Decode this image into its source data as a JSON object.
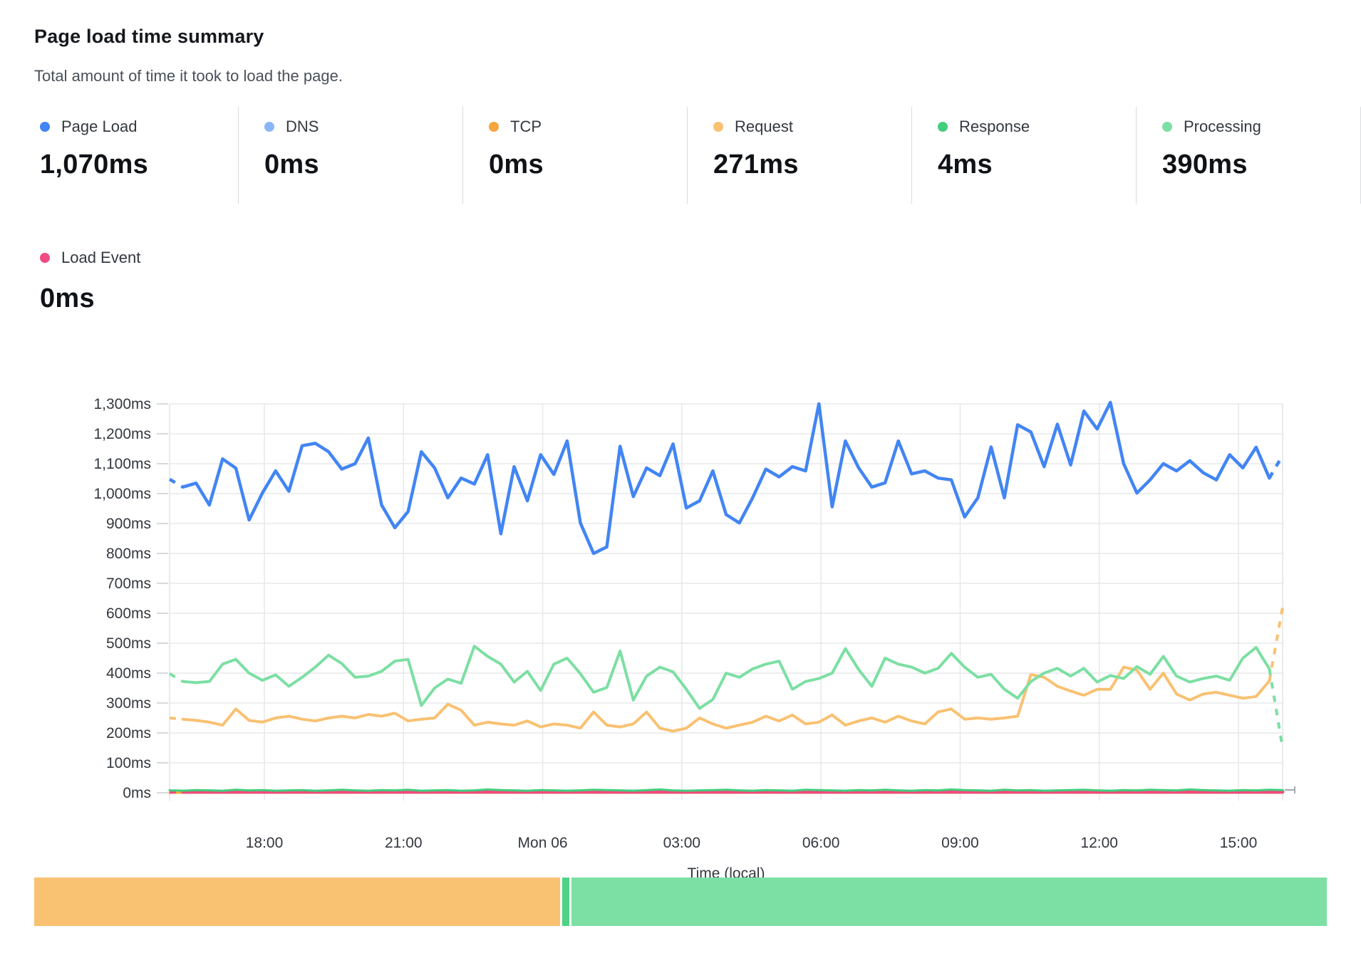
{
  "header": {
    "title": "Page load time summary",
    "subtitle": "Total amount of time it took to load the page."
  },
  "metrics": [
    {
      "label": "Page Load",
      "value": "1,070ms",
      "color": "#4285f4"
    },
    {
      "label": "DNS",
      "value": "0ms",
      "color": "#8ab6f8"
    },
    {
      "label": "TCP",
      "value": "0ms",
      "color": "#f5a53d"
    },
    {
      "label": "Request",
      "value": "271ms",
      "color": "#f9c172"
    },
    {
      "label": "Response",
      "value": "4ms",
      "color": "#42ce7c"
    },
    {
      "label": "Processing",
      "value": "390ms",
      "color": "#7cdfa3"
    },
    {
      "label": "Load Event",
      "value": "0ms",
      "color": "#ef4a81"
    }
  ],
  "chart_data": {
    "type": "line",
    "title": "Page load time summary",
    "xlabel": "Time (local)",
    "ylabel": "",
    "ylim": [
      0,
      1300
    ],
    "y_step": 100,
    "grid": true,
    "x_tick_labels": [
      "18:00",
      "21:00",
      "Mon 06",
      "03:00",
      "06:00",
      "09:00",
      "12:00",
      "15:00"
    ],
    "y_tick_labels": [
      "0ms",
      "100ms",
      "200ms",
      "300ms",
      "400ms",
      "500ms",
      "600ms",
      "700ms",
      "800ms",
      "900ms",
      "1,000ms",
      "1,100ms",
      "1,200ms",
      "1,300ms"
    ],
    "series": [
      {
        "name": "DNS",
        "color": "#8ab6f8",
        "width": 3,
        "flat": 0,
        "count": 85
      },
      {
        "name": "TCP",
        "color": "#f5a53d",
        "width": 3,
        "flat": 0,
        "count": 85
      },
      {
        "name": "Request",
        "color": "#f9c172",
        "width": 4,
        "dash_head": true,
        "dash_tail": true,
        "values": [
          250,
          246,
          242,
          236,
          226,
          280,
          242,
          236,
          250,
          256,
          246,
          240,
          250,
          256,
          250,
          262,
          256,
          266,
          240,
          246,
          250,
          296,
          276,
          226,
          236,
          230,
          226,
          240,
          220,
          230,
          226,
          216,
          270,
          226,
          220,
          230,
          270,
          216,
          206,
          216,
          250,
          230,
          216,
          226,
          236,
          256,
          240,
          260,
          230,
          236,
          260,
          226,
          240,
          250,
          236,
          256,
          240,
          230,
          270,
          280,
          246,
          250,
          246,
          250,
          256,
          395,
          386,
          356,
          340,
          326,
          346,
          346,
          420,
          410,
          346,
          400,
          330,
          310,
          330,
          336,
          326,
          316,
          322,
          374,
          620
        ]
      },
      {
        "name": "Processing",
        "color": "#7cdfa3",
        "width": 4,
        "dash_head": true,
        "dash_tail": true,
        "values": [
          398,
          372,
          368,
          372,
          430,
          446,
          400,
          376,
          394,
          356,
          386,
          420,
          460,
          432,
          386,
          390,
          406,
          440,
          446,
          292,
          350,
          380,
          366,
          490,
          456,
          430,
          370,
          406,
          342,
          430,
          450,
          398,
          336,
          352,
          474,
          310,
          390,
          420,
          404,
          346,
          282,
          312,
          400,
          386,
          414,
          430,
          440,
          346,
          372,
          382,
          400,
          482,
          412,
          356,
          450,
          430,
          420,
          400,
          416,
          466,
          420,
          386,
          396,
          346,
          316,
          372,
          400,
          416,
          390,
          416,
          370,
          392,
          382,
          422,
          396,
          456,
          390,
          370,
          382,
          390,
          376,
          450,
          486,
          414,
          150
        ]
      },
      {
        "name": "Page Load",
        "color": "#4285f4",
        "width": 4.5,
        "dash_head": true,
        "dash_tail": true,
        "values": [
          1048,
          1022,
          1035,
          962,
          1116,
          1085,
          912,
          1002,
          1076,
          1008,
          1160,
          1168,
          1140,
          1082,
          1100,
          1186,
          962,
          886,
          940,
          1140,
          1086,
          986,
          1052,
          1032,
          1130,
          866,
          1090,
          976,
          1130,
          1064,
          1176,
          902,
          800,
          822,
          1158,
          990,
          1086,
          1060,
          1166,
          952,
          976,
          1076,
          930,
          902,
          986,
          1082,
          1056,
          1090,
          1076,
          1300,
          956,
          1176,
          1086,
          1022,
          1036,
          1176,
          1066,
          1076,
          1052,
          1046,
          922,
          986,
          1156,
          986,
          1230,
          1206,
          1090,
          1232,
          1096,
          1276,
          1216,
          1305,
          1100,
          1002,
          1046,
          1100,
          1076,
          1110,
          1070,
          1046,
          1130,
          1086,
          1155,
          1052,
          1128
        ]
      },
      {
        "name": "Load Event",
        "color": "#ef4a81",
        "width": 5,
        "dash_head": true,
        "flat": 3,
        "count": 85
      },
      {
        "name": "Response",
        "color": "#42ce7c",
        "width": 3,
        "values": [
          8,
          7,
          9,
          8,
          7,
          10,
          8,
          9,
          7,
          8,
          9,
          7,
          8,
          10,
          8,
          7,
          9,
          8,
          10,
          7,
          8,
          9,
          7,
          8,
          11,
          9,
          8,
          7,
          9,
          8,
          7,
          8,
          10,
          9,
          8,
          7,
          9,
          11,
          8,
          7,
          8,
          9,
          10,
          8,
          7,
          9,
          8,
          7,
          10,
          9,
          8,
          7,
          9,
          8,
          10,
          8,
          7,
          9,
          8,
          11,
          9,
          8,
          7,
          10,
          8,
          9,
          7,
          8,
          9,
          10,
          8,
          7,
          9,
          8,
          10,
          9,
          8,
          11,
          9,
          8,
          7,
          9,
          8,
          10,
          9
        ]
      }
    ]
  },
  "footer_bar": {
    "segments": [
      {
        "name": "Request",
        "color": "#f9c172",
        "fraction": 0.408
      },
      {
        "name": "Response",
        "color": "#4fd285",
        "fraction": 0.0055
      },
      {
        "name": "Processing",
        "color": "#7cdfa4",
        "fraction": 0.5865
      }
    ]
  }
}
